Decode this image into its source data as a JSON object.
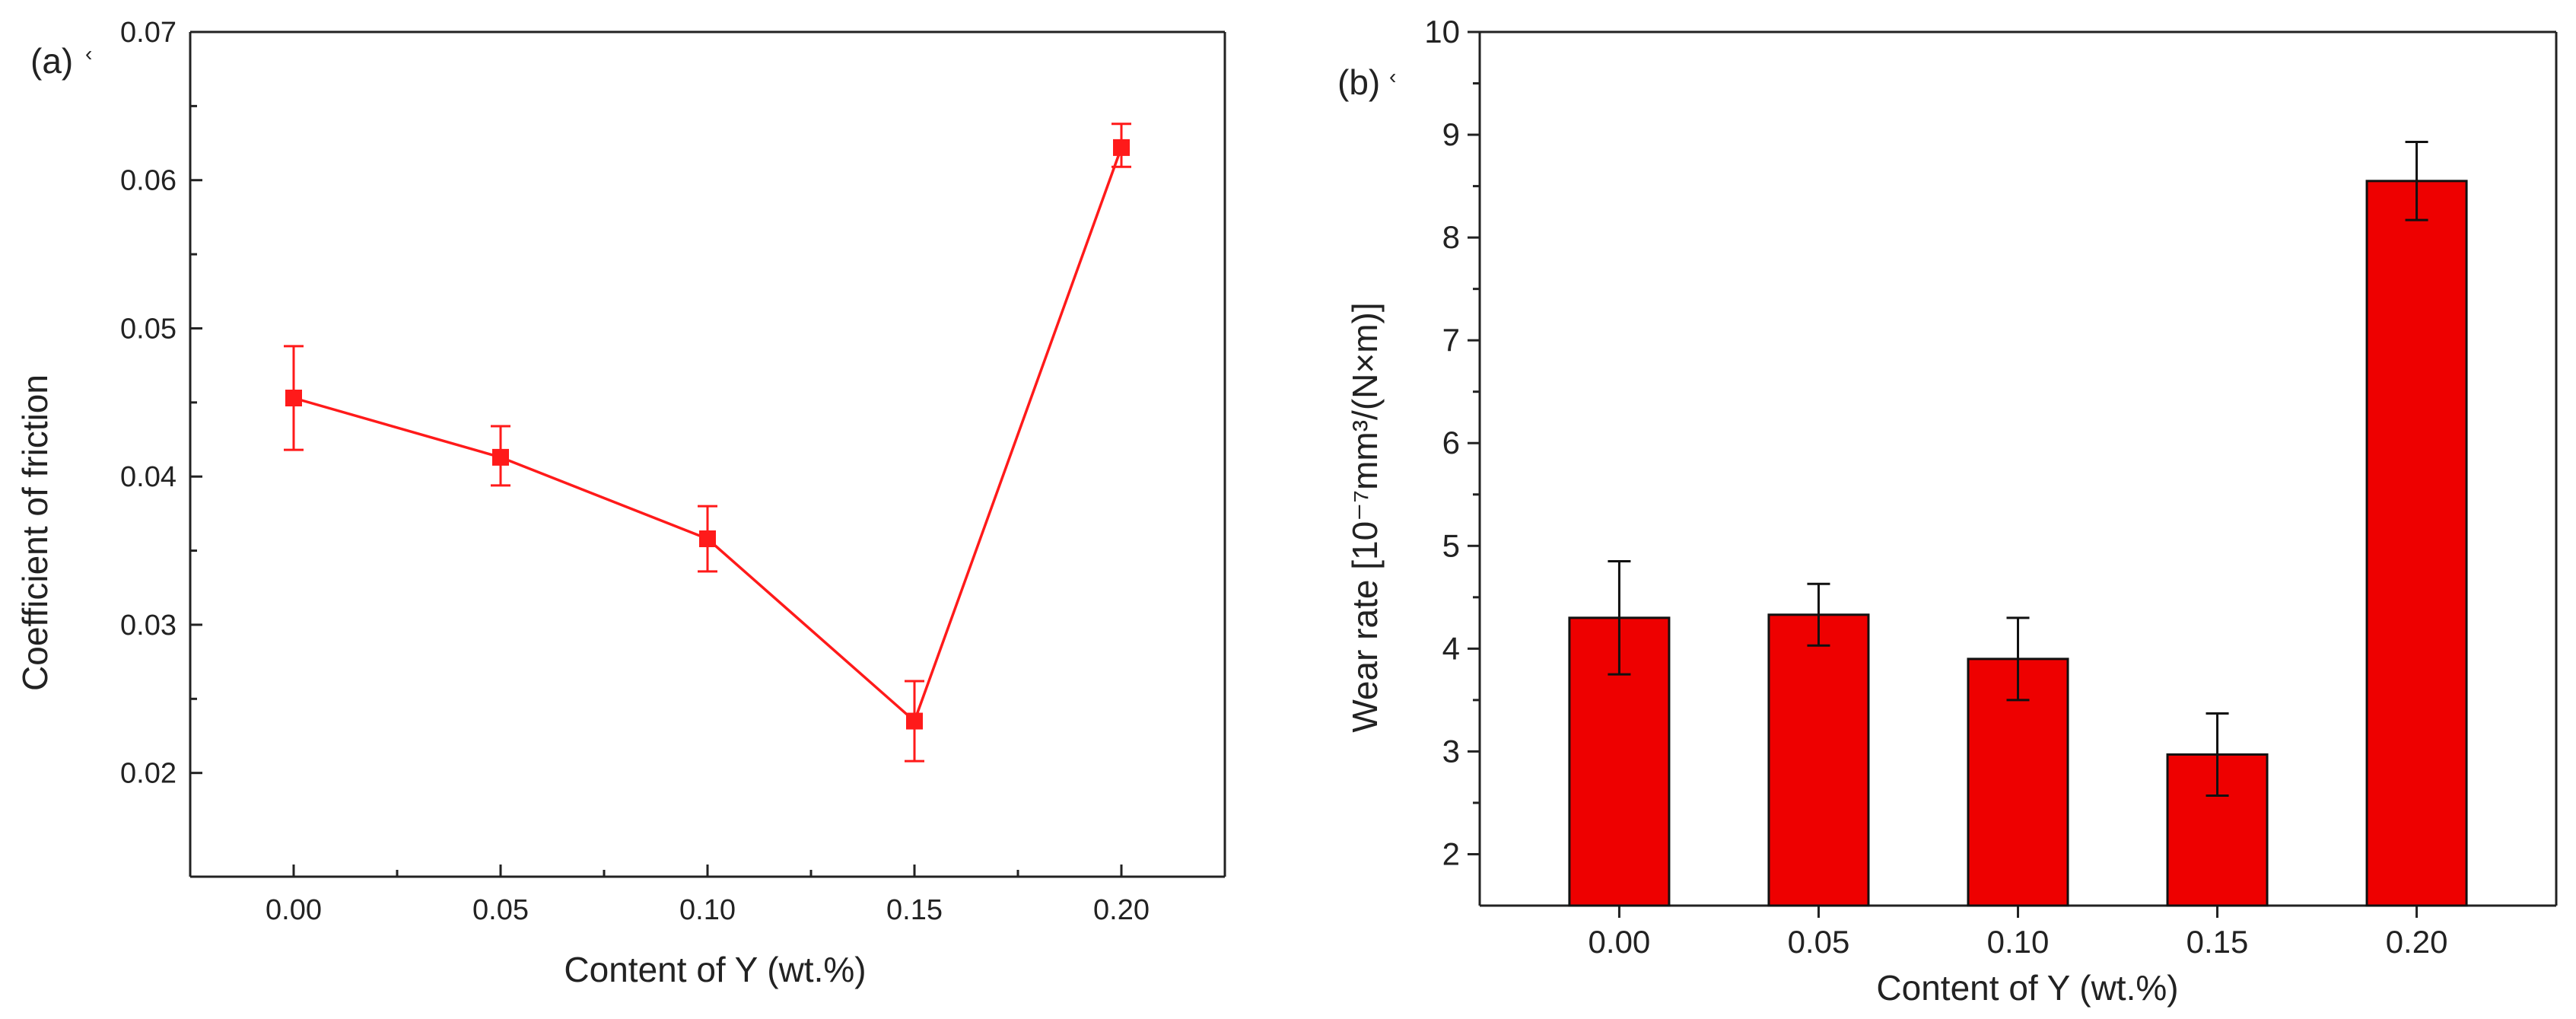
{
  "chart_data": [
    {
      "type": "line",
      "panel_label": "(a)",
      "panel_mark": "‹",
      "x": [
        0.0,
        0.05,
        0.1,
        0.15,
        0.2
      ],
      "x_tick_labels": [
        "0.00",
        "0.05",
        "0.10",
        "0.15",
        "0.20"
      ],
      "xlim": [
        -0.025,
        0.225
      ],
      "ylim": [
        0.013,
        0.07
      ],
      "y_ticks": [
        0.02,
        0.03,
        0.04,
        0.05,
        0.06,
        0.07
      ],
      "y_tick_labels": [
        "0.02",
        "0.03",
        "0.04",
        "0.05",
        "0.06",
        "0.07"
      ],
      "series": [
        {
          "name": "Coefficient of friction",
          "values": [
            0.0453,
            0.0413,
            0.0358,
            0.0235,
            0.0622
          ],
          "err_low": [
            0.0035,
            0.0019,
            0.0022,
            0.0027,
            0.0013
          ],
          "err_high": [
            0.0035,
            0.0021,
            0.0022,
            0.0027,
            0.0016
          ],
          "color": "#ff1a1a"
        }
      ],
      "xlabel": "Content of Y (wt.%)",
      "ylabel": "Coefficient of friction",
      "grid": false
    },
    {
      "type": "bar",
      "panel_label": "(b)",
      "panel_mark": "‹",
      "categories": [
        "0.00",
        "0.05",
        "0.10",
        "0.15",
        "0.20"
      ],
      "ylim": [
        1.5,
        10
      ],
      "y_ticks": [
        2,
        3,
        4,
        5,
        6,
        7,
        8,
        9,
        10
      ],
      "y_tick_labels": [
        "2",
        "3",
        "4",
        "5",
        "6",
        "7",
        "8",
        "9",
        "10"
      ],
      "series": [
        {
          "name": "Wear rate",
          "values": [
            4.3,
            4.33,
            3.9,
            2.97,
            8.55
          ],
          "err_low": [
            0.55,
            0.3,
            0.4,
            0.4,
            0.38
          ],
          "err_high": [
            0.55,
            0.3,
            0.4,
            0.4,
            0.38
          ],
          "color": "#ee0000"
        }
      ],
      "xlabel": "Content of Y (wt.%)",
      "ylabel": "Wear rate [10⁻⁷mm³/(N×m)]",
      "grid": false
    }
  ]
}
